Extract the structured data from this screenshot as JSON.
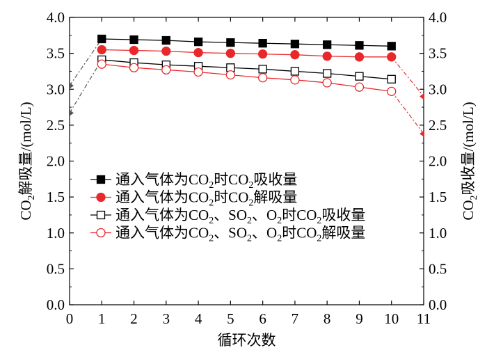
{
  "chart_data": {
    "type": "line",
    "xlabel": "循环次数",
    "ylabel_left_main": "CO",
    "ylabel_left_sub": "2",
    "ylabel_left_rest": "解吸量/(mol/L)",
    "ylabel_right_main": "CO",
    "ylabel_right_sub": "2",
    "ylabel_right_rest": "吸收量/(mol/L)",
    "xlim": [
      0,
      11
    ],
    "ylim": [
      0.0,
      4.0
    ],
    "x_ticks": [
      "0",
      "1",
      "2",
      "3",
      "4",
      "5",
      "6",
      "7",
      "8",
      "9",
      "10",
      "11"
    ],
    "y_ticks": [
      "0.0",
      "0.5",
      "1.0",
      "1.5",
      "2.0",
      "2.5",
      "3.0",
      "3.5",
      "4.0"
    ],
    "x": [
      1,
      2,
      3,
      4,
      5,
      6,
      7,
      8,
      9,
      10
    ],
    "series": [
      {
        "values": [
          3.7,
          3.69,
          3.68,
          3.66,
          3.65,
          3.64,
          3.63,
          3.62,
          3.61,
          3.6
        ],
        "color": "#000000",
        "marker": "square",
        "filled": true,
        "dash_start": [
          0,
          3.05
        ],
        "dash_end": null
      },
      {
        "values": [
          3.55,
          3.54,
          3.53,
          3.51,
          3.5,
          3.49,
          3.48,
          3.46,
          3.45,
          3.45
        ],
        "color": "#e8292b",
        "marker": "circle",
        "filled": true,
        "dash_start": null,
        "dash_end": [
          11,
          2.9
        ]
      },
      {
        "values": [
          3.41,
          3.37,
          3.34,
          3.32,
          3.3,
          3.28,
          3.25,
          3.22,
          3.18,
          3.14
        ],
        "color": "#000000",
        "marker": "square",
        "filled": false,
        "dash_start": [
          0,
          2.67
        ],
        "dash_end": null
      },
      {
        "values": [
          3.35,
          3.3,
          3.27,
          3.24,
          3.2,
          3.16,
          3.13,
          3.09,
          3.03,
          2.97
        ],
        "color": "#e8292b",
        "marker": "circle",
        "filled": false,
        "dash_start": null,
        "dash_end": [
          11,
          2.38
        ]
      }
    ],
    "legend": [
      [
        "通入气体为CO",
        "2",
        "时CO",
        "2",
        "吸收量"
      ],
      [
        "通入气体为CO",
        "2",
        "时CO",
        "2",
        "解吸量"
      ],
      [
        "通入气体为CO",
        "2",
        "、SO",
        "2",
        "、O",
        "2",
        "时CO",
        "2",
        "吸收量"
      ],
      [
        "通入气体为CO",
        "2",
        "、SO",
        "2",
        "、O",
        "2",
        "时CO",
        "2",
        "解吸量"
      ]
    ],
    "legend_position": "center-left",
    "grid": false
  }
}
